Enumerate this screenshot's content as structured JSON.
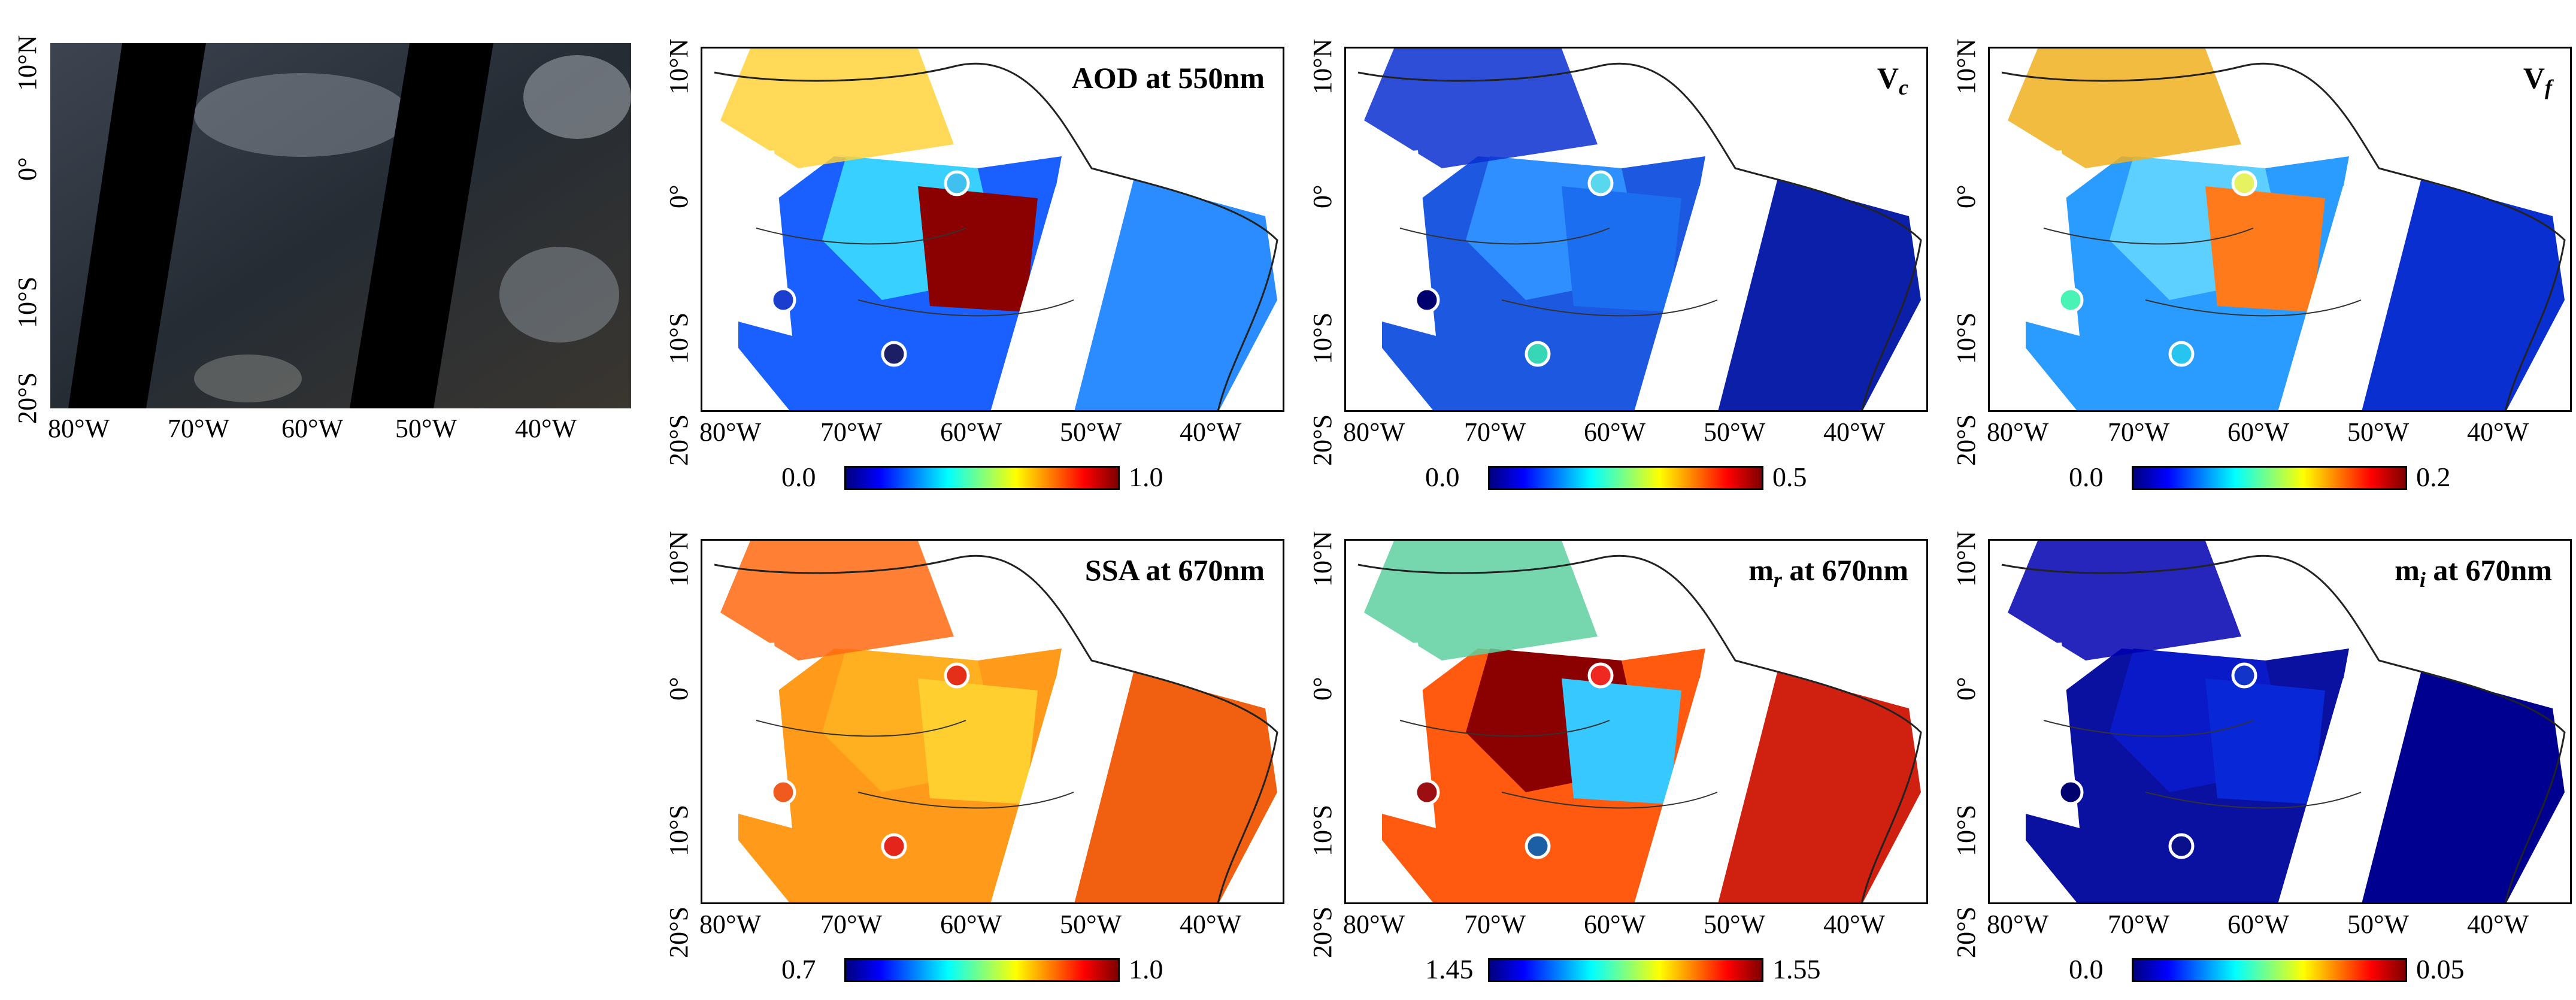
{
  "lon_ticks": [
    "80°W",
    "70°W",
    "60°W",
    "50°W",
    "40°W"
  ],
  "lat_ticks": [
    "10°N",
    "0°",
    "10°S",
    "20°S"
  ],
  "panels": [
    {
      "title": "AOD at 550nm",
      "colorbar_min": "0.0",
      "colorbar_max": "1.0",
      "dots": [
        "#1c3ecf",
        "#40c0ee",
        "#1c1f66"
      ]
    },
    {
      "title_main": "V",
      "title_sub": "c",
      "colorbar_min": "0.0",
      "colorbar_max": "0.5",
      "dots": [
        "#00006e",
        "#58d7ef",
        "#36d6b6"
      ]
    },
    {
      "title_main": "V",
      "title_sub": "f",
      "colorbar_min": "0.0",
      "colorbar_max": "0.2",
      "dots": [
        "#49f2b5",
        "#e7f260",
        "#27c4ef"
      ]
    },
    {
      "title": "SSA at 670nm",
      "colorbar_min": "0.7",
      "colorbar_max": "1.0",
      "dots": [
        "#f05a1e",
        "#e53019",
        "#e3251b"
      ]
    },
    {
      "title_main": "m",
      "title_sub": "r",
      "title_rest": " at 670nm",
      "colorbar_min": "1.45",
      "colorbar_max": "1.55",
      "dots": [
        "#9b0f12",
        "#f02822",
        "#1c5fa5"
      ]
    },
    {
      "title_main": "m",
      "title_sub": "i",
      "title_rest": " at 670nm",
      "colorbar_min": "0.0",
      "colorbar_max": "0.05",
      "dots": [
        "#00006e",
        "#1334c8",
        "#0a0f8a"
      ]
    }
  ],
  "colors": {
    "rgb_dark": "#2a2f36",
    "stripe": "#000000"
  }
}
